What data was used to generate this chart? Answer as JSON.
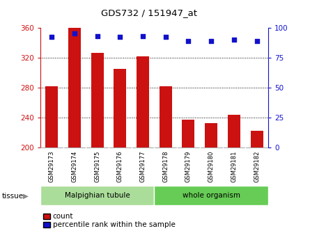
{
  "title": "GDS732 / 151947_at",
  "samples": [
    "GSM29173",
    "GSM29174",
    "GSM29175",
    "GSM29176",
    "GSM29177",
    "GSM29178",
    "GSM29179",
    "GSM29180",
    "GSM29181",
    "GSM29182"
  ],
  "counts": [
    282,
    360,
    326,
    305,
    322,
    282,
    237,
    233,
    244,
    222
  ],
  "percentiles": [
    92,
    95,
    93,
    92,
    93,
    92,
    89,
    89,
    90,
    89
  ],
  "ylim_left": [
    200,
    360
  ],
  "ylim_right": [
    0,
    100
  ],
  "yticks_left": [
    200,
    240,
    280,
    320,
    360
  ],
  "yticks_right": [
    0,
    25,
    50,
    75,
    100
  ],
  "bar_color": "#cc1111",
  "dot_color": "#1111cc",
  "grid_color": "#000000",
  "tissue_groups": [
    {
      "label": "Malpighian tubule",
      "start": 0,
      "end": 5,
      "color": "#aadd99"
    },
    {
      "label": "whole organism",
      "start": 5,
      "end": 10,
      "color": "#66cc55"
    }
  ],
  "tissue_label": "tissue",
  "legend_count_label": "count",
  "legend_percentile_label": "percentile rank within the sample",
  "bar_width": 0.55,
  "background_color": "#ffffff",
  "tick_label_box_color": "#cccccc",
  "fig_width": 4.45,
  "fig_height": 3.45
}
